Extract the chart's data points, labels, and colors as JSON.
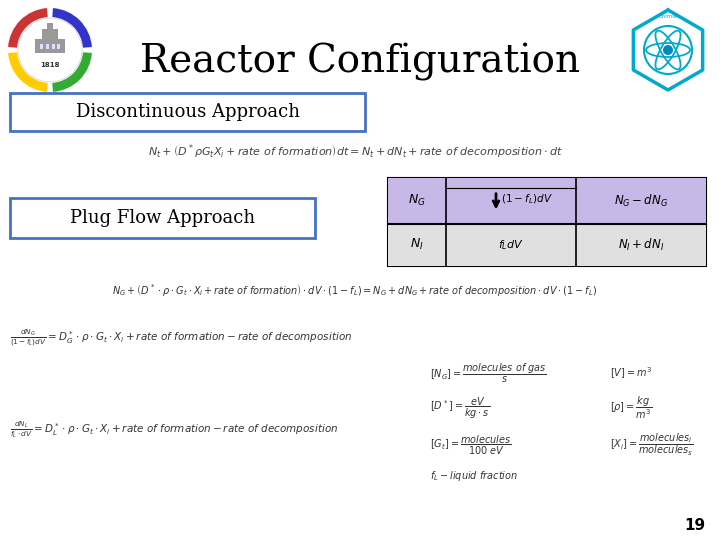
{
  "title": "Reactor Configuration",
  "bg_color": "#ffffff",
  "discontinuous_label": "Discontinuous Approach",
  "plug_flow_label": "Plug Flow Approach",
  "page_number": "19",
  "box_border_color": "#4472c4",
  "table_purple": "#c8b8e8",
  "table_gray": "#e0e0e0"
}
